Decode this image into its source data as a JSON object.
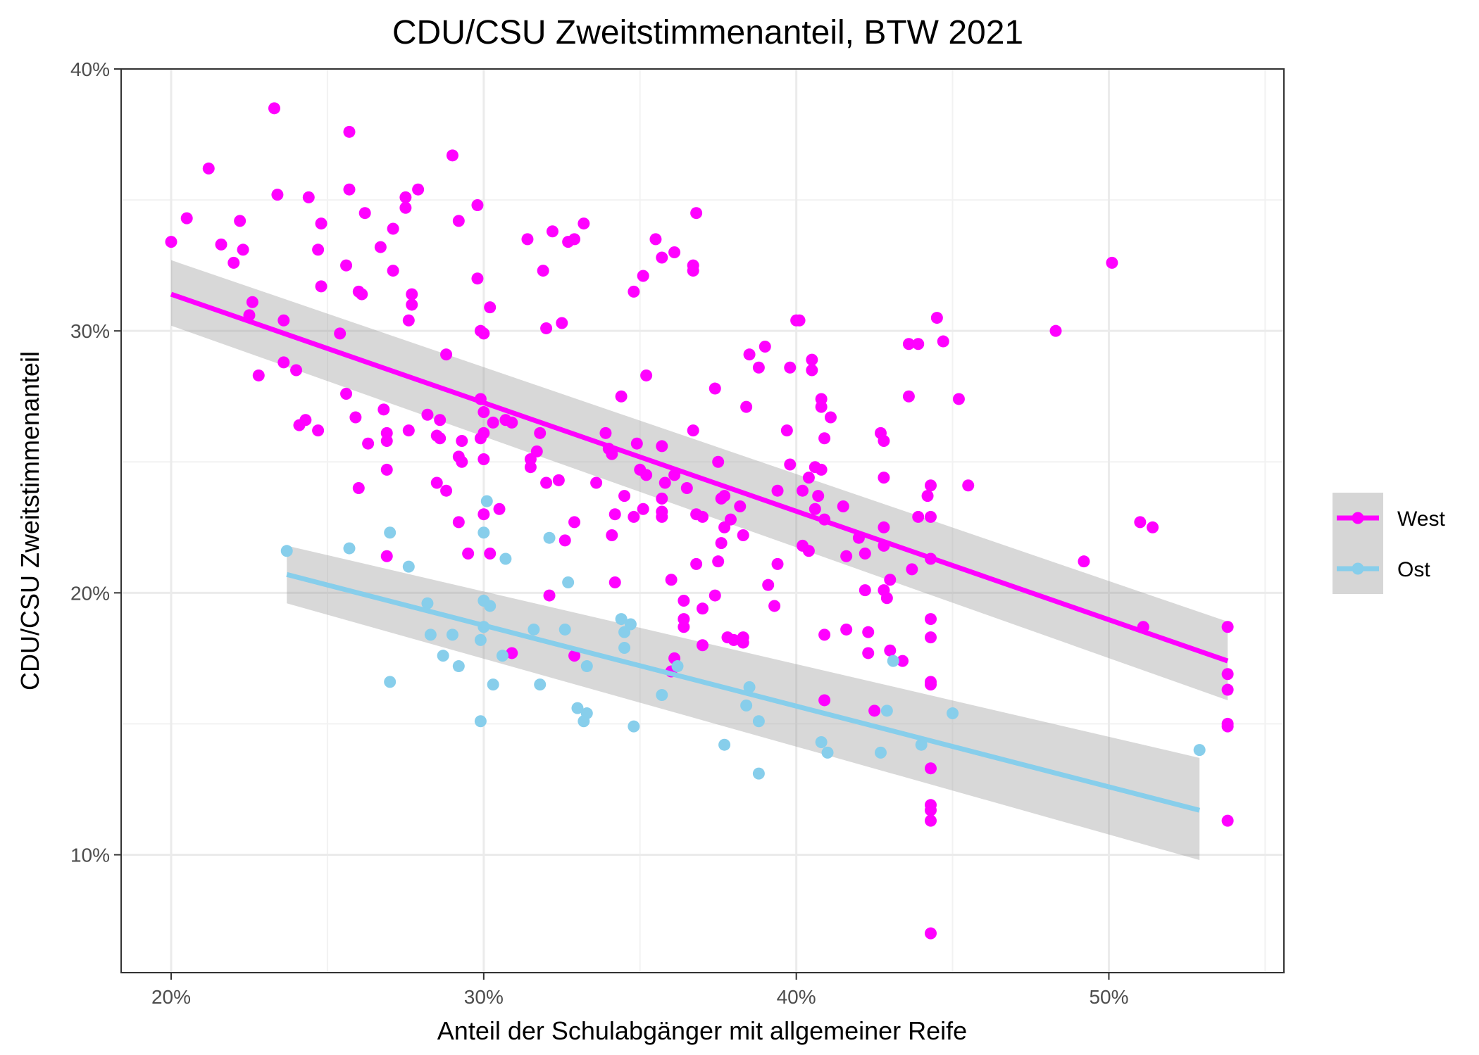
{
  "chart_data": {
    "type": "scatter",
    "title": "CDU/CSU Zweitstimmenanteil, BTW 2021",
    "xlabel": "Anteil der Schulabgänger mit allgemeiner Reife",
    "ylabel": "CDU/CSU Zweitstimmenanteil",
    "xlim": [
      18.4,
      55.6
    ],
    "ylim": [
      5.5,
      40
    ],
    "x_ticks": [
      20,
      30,
      40,
      50
    ],
    "x_tick_labels": [
      "20%",
      "30%",
      "40%",
      "50%"
    ],
    "y_ticks": [
      10,
      20,
      30,
      40
    ],
    "y_tick_labels": [
      "10%",
      "20%",
      "30%",
      "40%"
    ],
    "grid": true,
    "legend": {
      "position": "right",
      "entries": [
        "West",
        "Ost"
      ]
    },
    "series": [
      {
        "name": "West",
        "color": "#FF00FF",
        "trend": {
          "x": [
            20,
            53.8
          ],
          "y": [
            31.4,
            17.4
          ],
          "ci_lower": [
            30.2,
            15.9
          ],
          "ci_upper": [
            32.7,
            18.9
          ]
        },
        "points": [
          [
            20.0,
            33.4
          ],
          [
            20.5,
            34.3
          ],
          [
            21.2,
            36.2
          ],
          [
            21.6,
            33.3
          ],
          [
            22.0,
            32.6
          ],
          [
            22.2,
            34.2
          ],
          [
            22.3,
            33.1
          ],
          [
            22.5,
            30.6
          ],
          [
            22.6,
            31.1
          ],
          [
            22.8,
            28.3
          ],
          [
            23.3,
            38.5
          ],
          [
            23.4,
            35.2
          ],
          [
            23.6,
            30.4
          ],
          [
            23.6,
            28.8
          ],
          [
            24.0,
            28.5
          ],
          [
            24.1,
            26.4
          ],
          [
            24.3,
            26.6
          ],
          [
            24.4,
            35.1
          ],
          [
            24.8,
            34.1
          ],
          [
            24.7,
            33.1
          ],
          [
            24.8,
            31.7
          ],
          [
            24.7,
            26.2
          ],
          [
            25.4,
            29.9
          ],
          [
            25.6,
            32.5
          ],
          [
            25.7,
            35.4
          ],
          [
            25.7,
            37.6
          ],
          [
            26.0,
            31.5
          ],
          [
            26.1,
            31.4
          ],
          [
            26.2,
            34.5
          ],
          [
            25.6,
            27.6
          ],
          [
            25.9,
            26.7
          ],
          [
            26.3,
            25.7
          ],
          [
            26.0,
            24.0
          ],
          [
            26.7,
            33.2
          ],
          [
            26.8,
            27.0
          ],
          [
            26.9,
            26.1
          ],
          [
            26.9,
            25.8
          ],
          [
            26.9,
            24.7
          ],
          [
            26.9,
            21.4
          ],
          [
            27.1,
            33.9
          ],
          [
            27.1,
            32.3
          ],
          [
            27.5,
            35.1
          ],
          [
            27.5,
            34.7
          ],
          [
            27.7,
            31.4
          ],
          [
            27.7,
            31.0
          ],
          [
            27.6,
            30.4
          ],
          [
            27.6,
            26.2
          ],
          [
            27.9,
            35.4
          ],
          [
            28.2,
            26.8
          ],
          [
            28.6,
            26.6
          ],
          [
            28.5,
            26.0
          ],
          [
            28.6,
            25.9
          ],
          [
            28.5,
            24.2
          ],
          [
            28.8,
            23.9
          ],
          [
            28.8,
            29.1
          ],
          [
            29.0,
            36.7
          ],
          [
            29.2,
            34.2
          ],
          [
            29.2,
            25.2
          ],
          [
            29.3,
            25.8
          ],
          [
            29.3,
            25.0
          ],
          [
            29.2,
            22.7
          ],
          [
            29.5,
            21.5
          ],
          [
            29.8,
            34.8
          ],
          [
            29.8,
            32.0
          ],
          [
            29.9,
            30.0
          ],
          [
            30.0,
            29.9
          ],
          [
            29.9,
            27.4
          ],
          [
            30.0,
            26.9
          ],
          [
            30.0,
            26.1
          ],
          [
            29.9,
            25.9
          ],
          [
            30.0,
            25.1
          ],
          [
            30.0,
            23.0
          ],
          [
            30.2,
            30.9
          ],
          [
            30.3,
            26.5
          ],
          [
            30.2,
            21.5
          ],
          [
            30.5,
            23.2
          ],
          [
            30.7,
            26.6
          ],
          [
            30.9,
            26.5
          ],
          [
            30.9,
            17.7
          ],
          [
            31.4,
            33.5
          ],
          [
            31.5,
            25.1
          ],
          [
            31.5,
            24.8
          ],
          [
            31.7,
            25.4
          ],
          [
            31.8,
            26.1
          ],
          [
            31.9,
            32.3
          ],
          [
            32.0,
            30.1
          ],
          [
            32.0,
            24.2
          ],
          [
            32.1,
            19.9
          ],
          [
            32.2,
            33.8
          ],
          [
            32.4,
            24.3
          ],
          [
            32.5,
            30.3
          ],
          [
            32.6,
            22.0
          ],
          [
            32.7,
            33.4
          ],
          [
            32.9,
            33.5
          ],
          [
            32.9,
            22.7
          ],
          [
            32.9,
            17.6
          ],
          [
            33.2,
            34.1
          ],
          [
            33.6,
            24.2
          ],
          [
            33.9,
            26.1
          ],
          [
            34.0,
            25.5
          ],
          [
            34.1,
            25.3
          ],
          [
            34.1,
            22.2
          ],
          [
            34.2,
            23.0
          ],
          [
            34.2,
            20.4
          ],
          [
            34.4,
            27.5
          ],
          [
            34.5,
            23.7
          ],
          [
            34.8,
            31.5
          ],
          [
            34.8,
            22.9
          ],
          [
            34.9,
            25.7
          ],
          [
            35.0,
            24.7
          ],
          [
            35.1,
            23.2
          ],
          [
            35.1,
            32.1
          ],
          [
            35.2,
            28.3
          ],
          [
            35.2,
            24.5
          ],
          [
            35.5,
            33.5
          ],
          [
            35.7,
            32.8
          ],
          [
            35.7,
            25.6
          ],
          [
            35.7,
            23.6
          ],
          [
            35.8,
            24.2
          ],
          [
            35.7,
            23.1
          ],
          [
            35.7,
            22.9
          ],
          [
            36.0,
            20.5
          ],
          [
            36.1,
            33.0
          ],
          [
            36.1,
            24.5
          ],
          [
            36.0,
            17.0
          ],
          [
            36.1,
            17.5
          ],
          [
            36.4,
            19.7
          ],
          [
            36.4,
            19.0
          ],
          [
            36.4,
            18.7
          ],
          [
            36.5,
            24.0
          ],
          [
            36.7,
            32.5
          ],
          [
            36.7,
            32.3
          ],
          [
            36.7,
            26.2
          ],
          [
            36.8,
            34.5
          ],
          [
            36.8,
            23.0
          ],
          [
            36.8,
            21.1
          ],
          [
            37.0,
            22.9
          ],
          [
            37.0,
            19.4
          ],
          [
            37.0,
            18.0
          ],
          [
            37.4,
            19.9
          ],
          [
            37.4,
            27.8
          ],
          [
            37.5,
            25.0
          ],
          [
            37.5,
            21.2
          ],
          [
            37.6,
            23.6
          ],
          [
            37.6,
            21.9
          ],
          [
            37.7,
            23.7
          ],
          [
            37.7,
            22.5
          ],
          [
            37.8,
            18.3
          ],
          [
            37.9,
            22.8
          ],
          [
            38.0,
            18.2
          ],
          [
            38.2,
            23.3
          ],
          [
            38.3,
            18.3
          ],
          [
            38.3,
            18.1
          ],
          [
            38.3,
            22.2
          ],
          [
            38.4,
            27.1
          ],
          [
            38.5,
            29.1
          ],
          [
            38.8,
            28.6
          ],
          [
            39.0,
            29.4
          ],
          [
            39.1,
            20.3
          ],
          [
            39.4,
            23.9
          ],
          [
            39.4,
            21.1
          ],
          [
            39.3,
            19.5
          ],
          [
            39.7,
            26.2
          ],
          [
            39.8,
            28.6
          ],
          [
            39.8,
            24.9
          ],
          [
            40.1,
            30.4
          ],
          [
            40.0,
            30.4
          ],
          [
            40.2,
            23.9
          ],
          [
            40.2,
            21.8
          ],
          [
            40.4,
            24.4
          ],
          [
            40.4,
            21.6
          ],
          [
            40.5,
            28.9
          ],
          [
            40.5,
            28.5
          ],
          [
            40.6,
            24.8
          ],
          [
            40.6,
            23.2
          ],
          [
            40.7,
            23.7
          ],
          [
            40.8,
            24.7
          ],
          [
            40.8,
            27.4
          ],
          [
            40.8,
            27.1
          ],
          [
            40.9,
            25.9
          ],
          [
            40.9,
            22.8
          ],
          [
            40.9,
            18.4
          ],
          [
            40.9,
            15.9
          ],
          [
            41.1,
            26.7
          ],
          [
            41.5,
            23.3
          ],
          [
            41.6,
            21.4
          ],
          [
            41.6,
            18.6
          ],
          [
            42.0,
            22.1
          ],
          [
            42.2,
            21.5
          ],
          [
            42.2,
            20.1
          ],
          [
            42.3,
            18.5
          ],
          [
            42.3,
            17.7
          ],
          [
            42.5,
            15.5
          ],
          [
            42.7,
            26.1
          ],
          [
            42.8,
            25.8
          ],
          [
            42.8,
            24.4
          ],
          [
            42.8,
            22.5
          ],
          [
            42.8,
            21.8
          ],
          [
            42.8,
            20.1
          ],
          [
            42.9,
            19.8
          ],
          [
            43.0,
            20.5
          ],
          [
            43.0,
            17.8
          ],
          [
            43.4,
            17.4
          ],
          [
            43.6,
            27.5
          ],
          [
            43.6,
            29.5
          ],
          [
            43.9,
            29.5
          ],
          [
            43.7,
            20.9
          ],
          [
            43.9,
            22.9
          ],
          [
            44.2,
            23.7
          ],
          [
            44.3,
            24.1
          ],
          [
            44.3,
            22.9
          ],
          [
            44.3,
            21.3
          ],
          [
            44.3,
            19.0
          ],
          [
            44.3,
            18.3
          ],
          [
            44.3,
            16.6
          ],
          [
            44.3,
            16.5
          ],
          [
            44.3,
            13.3
          ],
          [
            44.3,
            11.9
          ],
          [
            44.3,
            11.7
          ],
          [
            44.3,
            11.3
          ],
          [
            44.3,
            7.0
          ],
          [
            44.5,
            30.5
          ],
          [
            44.7,
            29.6
          ],
          [
            45.2,
            27.4
          ],
          [
            45.5,
            24.1
          ],
          [
            48.3,
            30.0
          ],
          [
            49.2,
            21.2
          ],
          [
            50.1,
            32.6
          ],
          [
            51.0,
            22.7
          ],
          [
            51.1,
            18.7
          ],
          [
            51.4,
            22.5
          ],
          [
            53.8,
            18.7
          ],
          [
            53.8,
            16.9
          ],
          [
            53.8,
            16.3
          ],
          [
            53.8,
            15.0
          ],
          [
            53.8,
            14.9
          ],
          [
            53.8,
            11.3
          ]
        ]
      },
      {
        "name": "Ost",
        "color": "#87CEEB",
        "trend": {
          "x": [
            23.7,
            52.9
          ],
          "y": [
            20.7,
            11.7
          ],
          "ci_lower": [
            19.6,
            9.8
          ],
          "ci_upper": [
            21.8,
            13.7
          ]
        },
        "points": [
          [
            23.7,
            21.6
          ],
          [
            25.7,
            21.7
          ],
          [
            27.0,
            16.6
          ],
          [
            27.0,
            22.3
          ],
          [
            27.6,
            21.0
          ],
          [
            28.2,
            19.6
          ],
          [
            28.3,
            18.4
          ],
          [
            28.7,
            17.6
          ],
          [
            29.0,
            18.4
          ],
          [
            29.2,
            17.2
          ],
          [
            29.9,
            18.2
          ],
          [
            29.9,
            15.1
          ],
          [
            30.0,
            19.7
          ],
          [
            30.0,
            18.7
          ],
          [
            30.0,
            22.3
          ],
          [
            30.1,
            23.5
          ],
          [
            30.2,
            19.5
          ],
          [
            30.3,
            16.5
          ],
          [
            30.6,
            17.6
          ],
          [
            30.7,
            21.3
          ],
          [
            31.6,
            18.6
          ],
          [
            31.8,
            16.5
          ],
          [
            32.1,
            22.1
          ],
          [
            32.6,
            18.6
          ],
          [
            32.7,
            20.4
          ],
          [
            33.0,
            15.6
          ],
          [
            33.2,
            15.1
          ],
          [
            33.3,
            15.4
          ],
          [
            33.3,
            17.2
          ],
          [
            34.4,
            19.0
          ],
          [
            34.5,
            17.9
          ],
          [
            34.5,
            18.5
          ],
          [
            34.7,
            18.8
          ],
          [
            34.8,
            14.9
          ],
          [
            35.7,
            16.1
          ],
          [
            36.2,
            17.2
          ],
          [
            37.7,
            14.2
          ],
          [
            38.4,
            15.7
          ],
          [
            38.5,
            16.4
          ],
          [
            38.8,
            15.1
          ],
          [
            38.8,
            13.1
          ],
          [
            40.8,
            14.3
          ],
          [
            41.0,
            13.9
          ],
          [
            42.7,
            13.9
          ],
          [
            42.9,
            15.5
          ],
          [
            43.1,
            17.4
          ],
          [
            44.0,
            14.2
          ],
          [
            45.0,
            15.4
          ],
          [
            52.9,
            14.0
          ]
        ]
      }
    ]
  }
}
